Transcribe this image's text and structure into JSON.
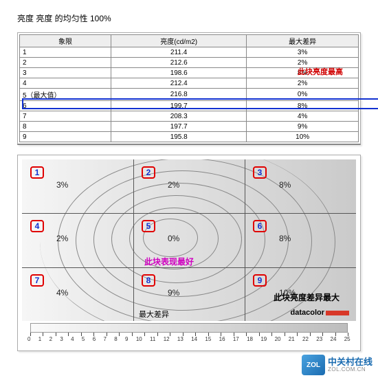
{
  "title": "亮度 亮度 的均匀性 100%",
  "table": {
    "headers": [
      "象限",
      "亮度(cd/m2)",
      "最大差异"
    ],
    "rows": [
      {
        "q": "1",
        "lum": "211.4",
        "diff": "3%"
      },
      {
        "q": "2",
        "lum": "212.6",
        "diff": "2%"
      },
      {
        "q": "3",
        "lum": "198.6",
        "diff": "8%"
      },
      {
        "q": "4",
        "lum": "212.4",
        "diff": "2%"
      },
      {
        "q": "5（最大值）",
        "lum": "216.8",
        "diff": "0%"
      },
      {
        "q": "6",
        "lum": "199.7",
        "diff": "8%"
      },
      {
        "q": "7",
        "lum": "208.3",
        "diff": "4%"
      },
      {
        "q": "8",
        "lum": "197.7",
        "diff": "9%"
      },
      {
        "q": "9",
        "lum": "195.8",
        "diff": "10%"
      }
    ],
    "highlight_row_index": 4,
    "highlight_label": "此块亮度最高",
    "colors": {
      "highlight_border": "#1030d0",
      "highlight_text": "#d00000"
    }
  },
  "diagram": {
    "type": "contour-grid",
    "grid": {
      "cols": 3,
      "rows": 3
    },
    "cells": [
      {
        "n": "1",
        "pct": "3%"
      },
      {
        "n": "2",
        "pct": "2%"
      },
      {
        "n": "3",
        "pct": "8%"
      },
      {
        "n": "4",
        "pct": "2%"
      },
      {
        "n": "5",
        "pct": "0%"
      },
      {
        "n": "6",
        "pct": "8%"
      },
      {
        "n": "7",
        "pct": "4%"
      },
      {
        "n": "8",
        "pct": "9%"
      },
      {
        "n": "9",
        "pct": "10%"
      }
    ],
    "center_label": "此块表现最好",
    "bottom_label": "此块亮度差异最大",
    "contour_label": "最大差异",
    "brand": "datacolor",
    "colors": {
      "cell_border": "#e00000",
      "cell_text": "#1030d0",
      "center_text": "#d000c0",
      "grid_line": "#555555",
      "contour_line": "#888888",
      "brand_bar": "#d83828"
    },
    "scale": {
      "min": 0,
      "max": 25,
      "step": 1
    }
  },
  "watermark": {
    "cn": "中关村在线",
    "en": "ZOL.COM.CN",
    "badge": "ZOL"
  }
}
